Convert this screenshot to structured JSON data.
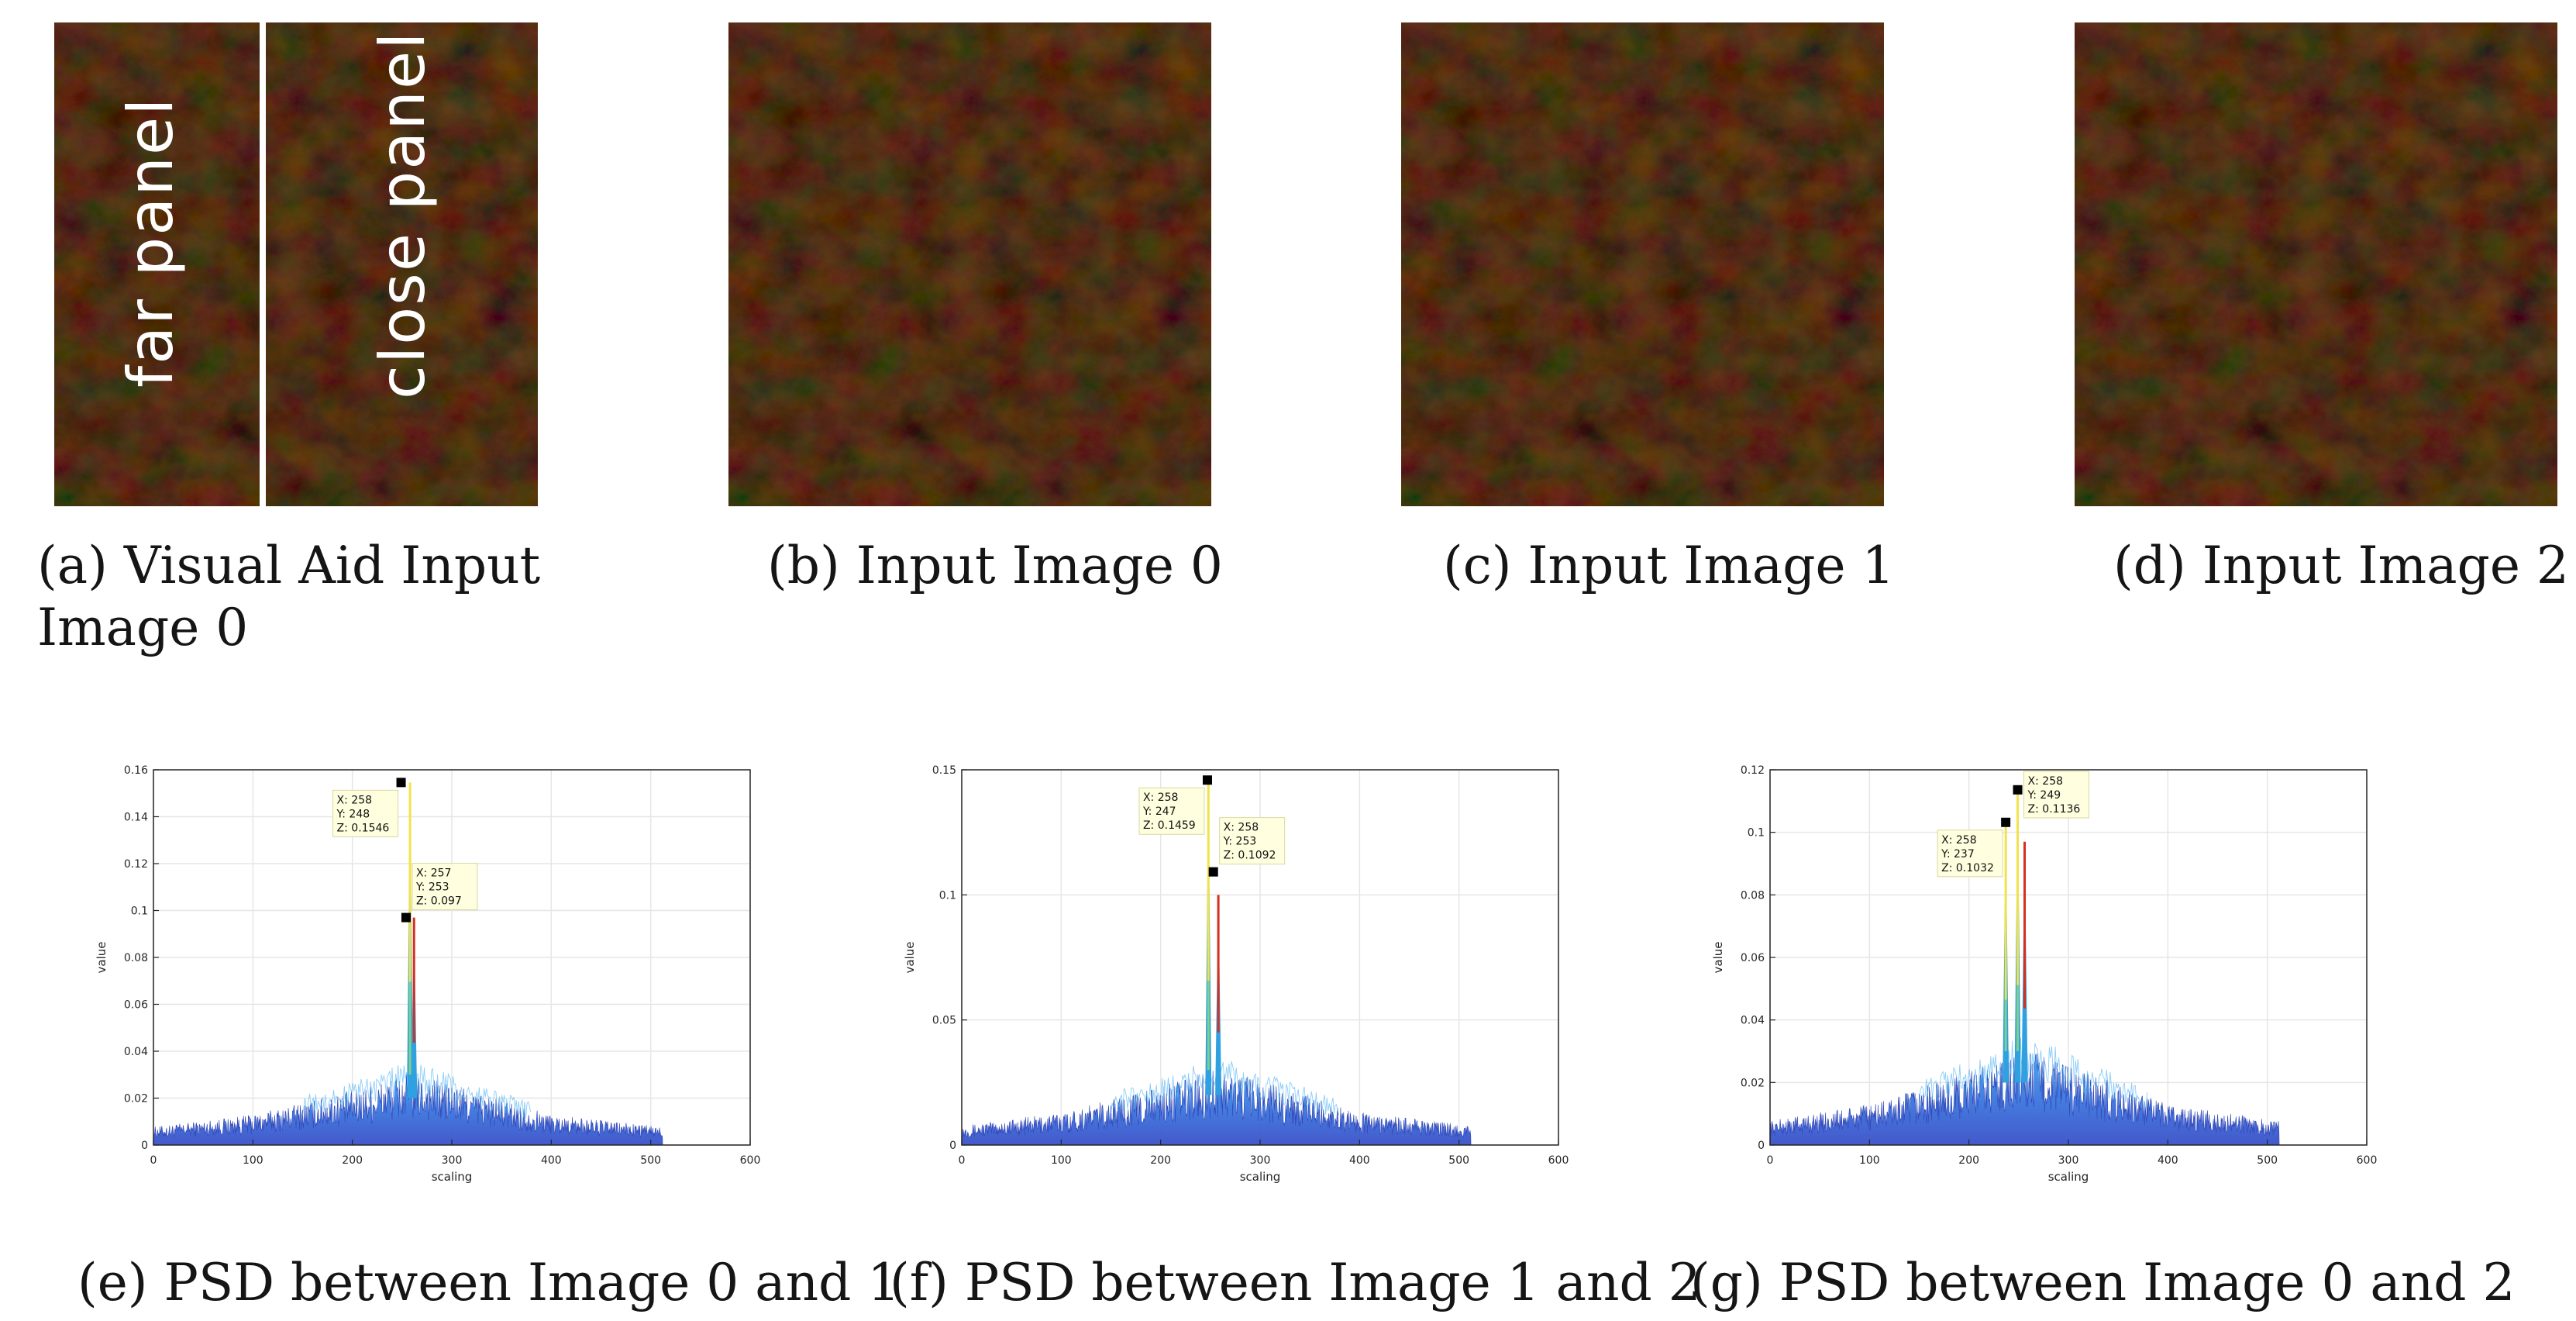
{
  "figure": {
    "panel_a": {
      "label_far": "far panel",
      "label_close": "close panel",
      "caption_line1": "(a)  Visual   Aid   Input",
      "caption_line2": "Image 0"
    },
    "panel_b": {
      "caption": "(b)  Input Image 0"
    },
    "panel_c": {
      "caption": "(c)  Input Image 1"
    },
    "panel_d": {
      "caption": "(d)  Input Image 2"
    },
    "panel_e": {
      "caption": "(e)  PSD between Image 0 and 1"
    },
    "panel_f": {
      "caption": "(f)  PSD between Image 1 and 2"
    },
    "panel_g": {
      "caption": "(g)  PSD between Image 0 and 2"
    }
  },
  "colors": {
    "texture_base": "#6b4a2c",
    "texture_light": "#8a6a45",
    "texture_dark": "#4a321c",
    "surface_low": "#3a50c8",
    "surface_high": "#39a8f0",
    "peak_yellow": "#f2e24a",
    "peak_red": "#d23020",
    "grid": "#e6e6e6",
    "datatip_bg": "#ffffe0"
  },
  "chart_data": [
    {
      "type": "area",
      "title": "",
      "xlabel": "scaling",
      "ylabel": "value",
      "xlim": [
        0,
        600
      ],
      "ylim": [
        0,
        0.16
      ],
      "xticks": [
        "0",
        "100",
        "200",
        "300",
        "400",
        "500",
        "600"
      ],
      "yticks": [
        "0",
        "0.02",
        "0.04",
        "0.06",
        "0.08",
        "0.1",
        "0.12",
        "0.14",
        "0.16"
      ],
      "baseline": {
        "x": [
          0,
          100,
          200,
          258,
          300,
          400,
          512
        ],
        "y": [
          0.006,
          0.01,
          0.018,
          0.024,
          0.02,
          0.01,
          0.006
        ]
      },
      "peaks": [
        {
          "x": 258,
          "y": 0.1546,
          "color": "yellow"
        },
        {
          "x": 262,
          "y": 0.097,
          "color": "red"
        }
      ],
      "datatips": [
        {
          "x": 249,
          "y": 0.1546,
          "lines": [
            "X: 258",
            "Y: 248",
            "Z: 0.1546"
          ],
          "side": "left"
        },
        {
          "x": 254,
          "y": 0.097,
          "lines": [
            "X: 257",
            "Y: 253",
            "Z: 0.097"
          ],
          "side": "right"
        }
      ]
    },
    {
      "type": "area",
      "title": "",
      "xlabel": "scaling",
      "ylabel": "value",
      "xlim": [
        0,
        600
      ],
      "ylim": [
        0,
        0.15
      ],
      "xticks": [
        "0",
        "100",
        "200",
        "300",
        "400",
        "500",
        "600"
      ],
      "yticks": [
        "0",
        "0.05",
        "0.1",
        "0.15"
      ],
      "baseline": {
        "x": [
          0,
          100,
          200,
          258,
          300,
          400,
          512
        ],
        "y": [
          0.006,
          0.01,
          0.018,
          0.024,
          0.02,
          0.01,
          0.006
        ]
      },
      "peaks": [
        {
          "x": 248,
          "y": 0.1459,
          "color": "yellow"
        },
        {
          "x": 258,
          "y": 0.1,
          "color": "red"
        }
      ],
      "datatips": [
        {
          "x": 247,
          "y": 0.1459,
          "lines": [
            "X: 258",
            "Y: 247",
            "Z: 0.1459"
          ],
          "side": "left"
        },
        {
          "x": 253,
          "y": 0.1092,
          "lines": [
            "X: 258",
            "Y: 253",
            "Z: 0.1092"
          ],
          "side": "right"
        }
      ]
    },
    {
      "type": "area",
      "title": "",
      "xlabel": "scaling",
      "ylabel": "value",
      "xlim": [
        0,
        600
      ],
      "ylim": [
        0,
        0.12
      ],
      "xticks": [
        "0",
        "100",
        "200",
        "300",
        "400",
        "500",
        "600"
      ],
      "yticks": [
        "0",
        "0.02",
        "0.04",
        "0.06",
        "0.08",
        "0.1",
        "0.12"
      ],
      "baseline": {
        "x": [
          0,
          100,
          200,
          258,
          300,
          400,
          512
        ],
        "y": [
          0.006,
          0.01,
          0.018,
          0.024,
          0.02,
          0.01,
          0.006
        ]
      },
      "peaks": [
        {
          "x": 237,
          "y": 0.1032,
          "color": "yellow"
        },
        {
          "x": 249,
          "y": 0.1136,
          "color": "yellow"
        },
        {
          "x": 256,
          "y": 0.097,
          "color": "red"
        }
      ],
      "datatips": [
        {
          "x": 237,
          "y": 0.1032,
          "lines": [
            "X: 258",
            "Y: 237",
            "Z: 0.1032"
          ],
          "side": "left"
        },
        {
          "x": 249,
          "y": 0.1136,
          "lines": [
            "X: 258",
            "Y: 249",
            "Z: 0.1136"
          ],
          "side": "right"
        }
      ]
    }
  ]
}
